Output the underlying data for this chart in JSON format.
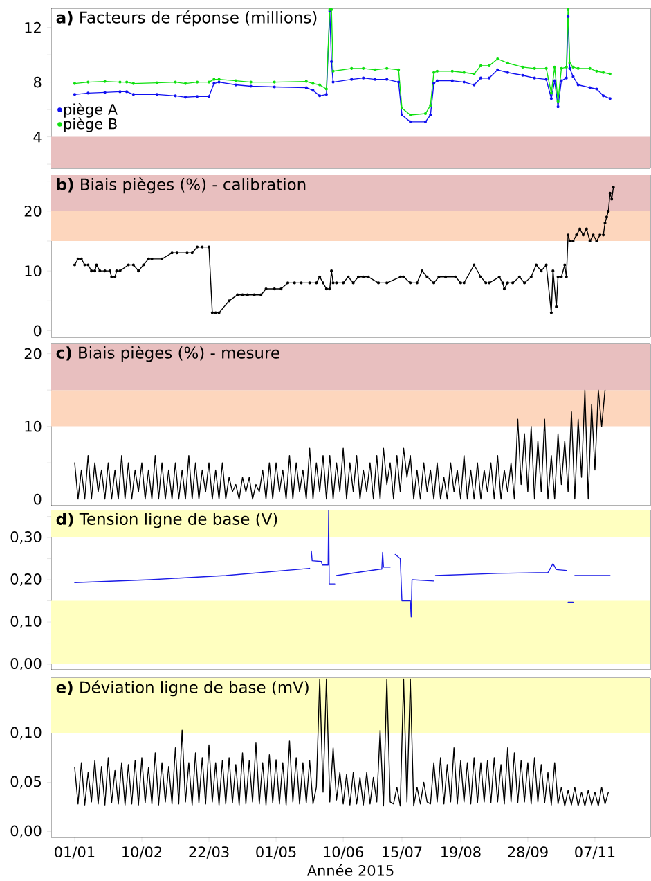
{
  "chart_data": [
    {
      "type": "line",
      "title": "**a)** Facteurs de réponse (millions)",
      "marker": "circle",
      "line_style": "solid",
      "legend": "left",
      "tick_labels": "y",
      "xlim": [
        "2014-12-18",
        "2015-12-10"
      ],
      "ylim": [
        1.7,
        13.4
      ],
      "yticks": [
        {
          "value": 2,
          "label": null
        },
        4,
        {
          "value": 6,
          "label": null
        },
        8,
        {
          "value": 10,
          "label": null
        },
        12
      ],
      "bands": [
        {
          "axis": "y",
          "from": 1.7,
          "to": 4,
          "color": "#e8bfbf"
        }
      ],
      "x": [
        "2015-01-01",
        "2015-01-09",
        "2015-01-19",
        "2015-01-28",
        "2015-02-01",
        "2015-02-05",
        "2015-02-19",
        "2015-03-02",
        "2015-03-08",
        "2015-03-15",
        "2015-03-22",
        "2015-03-25",
        "2015-03-28",
        "2015-04-07",
        "2015-04-16",
        "2015-04-30",
        "2015-05-19",
        "2015-05-23",
        "2015-05-27",
        "2015-05-31",
        "2015-06-02",
        "2015-06-03",
        "2015-06-04",
        "2015-06-15",
        "2015-06-22",
        "2015-06-29",
        "2015-07-06",
        "2015-07-13",
        "2015-07-15",
        "2015-07-20",
        "2015-07-29",
        "2015-08-01",
        "2015-08-03",
        "2015-08-05",
        "2015-08-14",
        "2015-08-21",
        "2015-08-27",
        "2015-08-31",
        "2015-09-05",
        "2015-09-10",
        "2015-09-16",
        "2015-09-25",
        "2015-10-02",
        "2015-10-09",
        "2015-10-12",
        "2015-10-14",
        "2015-10-16",
        "2015-10-18",
        "2015-10-21",
        "2015-10-22",
        "2015-10-23",
        "2015-10-25",
        "2015-10-28",
        "2015-11-04",
        "2015-11-08",
        "2015-11-12",
        "2015-11-16"
      ],
      "series": [
        {
          "name": "piège A",
          "color": "#1010f0",
          "values": [
            7.1,
            7.2,
            7.25,
            7.3,
            7.3,
            7.1,
            7.1,
            7.0,
            6.9,
            6.95,
            6.95,
            7.9,
            8.0,
            7.8,
            7.7,
            7.65,
            7.6,
            7.4,
            7.0,
            7.1,
            13.2,
            9.5,
            8.0,
            8.2,
            8.3,
            8.2,
            8.2,
            8.0,
            5.6,
            5.1,
            5.1,
            5.6,
            7.9,
            8.1,
            8.1,
            8.0,
            7.8,
            8.3,
            8.3,
            8.9,
            8.7,
            8.5,
            8.3,
            8.2,
            6.8,
            8.1,
            6.2,
            8.1,
            8.3,
            12.8,
            9.0,
            8.4,
            7.8,
            7.6,
            7.5,
            7.0,
            6.8
          ]
        },
        {
          "name": "piège B",
          "color": "#10e010",
          "values": [
            7.9,
            8.0,
            8.05,
            8.0,
            8.0,
            7.9,
            7.95,
            8.0,
            7.9,
            8.0,
            8.0,
            8.2,
            8.2,
            8.1,
            8.0,
            8.0,
            8.05,
            7.9,
            7.8,
            7.5,
            13.3,
            13.3,
            8.8,
            9.0,
            9.0,
            8.9,
            9.0,
            8.9,
            6.1,
            5.6,
            5.7,
            6.3,
            8.7,
            8.8,
            8.8,
            8.7,
            8.6,
            9.2,
            9.2,
            9.7,
            9.4,
            9.1,
            9.0,
            9.0,
            7.2,
            9.1,
            6.6,
            9.0,
            9.1,
            13.3,
            9.4,
            9.1,
            9.0,
            9.0,
            8.8,
            8.7,
            8.6
          ]
        }
      ]
    },
    {
      "type": "line",
      "title": "**b)** Biais pièges (%) - calibration",
      "marker": "circle",
      "line_style": "solid",
      "tick_labels": "y",
      "xlim": [
        "2014-12-18",
        "2015-12-10"
      ],
      "ylim": [
        -1.1,
        26
      ],
      "yticks": [
        0,
        {
          "value": 5,
          "label": null
        },
        10,
        {
          "value": 15,
          "label": null
        },
        20,
        {
          "value": 25,
          "label": null
        }
      ],
      "bands": [
        {
          "axis": "y",
          "from": 15,
          "to": 20,
          "color": "#fdd6bd"
        },
        {
          "axis": "y",
          "from": 20,
          "to": 26,
          "color": "#e8bfbf"
        }
      ],
      "x": [
        "2015-01-01",
        "2015-01-03",
        "2015-01-05",
        "2015-01-07",
        "2015-01-09",
        "2015-01-11",
        "2015-01-13",
        "2015-01-14",
        "2015-01-16",
        "2015-01-19",
        "2015-01-22",
        "2015-01-23",
        "2015-01-25",
        "2015-01-26",
        "2015-01-28",
        "2015-02-02",
        "2015-02-05",
        "2015-02-08",
        "2015-02-11",
        "2015-02-14",
        "2015-02-16",
        "2015-02-22",
        "2015-02-28",
        "2015-03-03",
        "2015-03-09",
        "2015-03-12",
        "2015-03-15",
        "2015-03-18",
        "2015-03-22",
        "2015-03-24",
        "2015-03-26",
        "2015-03-28",
        "2015-04-03",
        "2015-04-08",
        "2015-04-11",
        "2015-04-14",
        "2015-04-18",
        "2015-04-22",
        "2015-04-25",
        "2015-04-30",
        "2015-05-04",
        "2015-05-08",
        "2015-05-12",
        "2015-05-16",
        "2015-05-21",
        "2015-05-25",
        "2015-05-27",
        "2015-05-29",
        "2015-05-31",
        "2015-06-02",
        "2015-06-03",
        "2015-06-04",
        "2015-06-06",
        "2015-06-10",
        "2015-06-13",
        "2015-06-16",
        "2015-06-19",
        "2015-06-22",
        "2015-06-25",
        "2015-07-01",
        "2015-07-06",
        "2015-07-14",
        "2015-07-16",
        "2015-07-20",
        "2015-07-24",
        "2015-07-27",
        "2015-07-30",
        "2015-08-03",
        "2015-08-06",
        "2015-08-10",
        "2015-08-16",
        "2015-08-19",
        "2015-08-21",
        "2015-08-27",
        "2015-08-31",
        "2015-09-03",
        "2015-09-05",
        "2015-09-11",
        "2015-09-13",
        "2015-09-14",
        "2015-09-16",
        "2015-09-19",
        "2015-09-23",
        "2015-09-26",
        "2015-09-30",
        "2015-10-03",
        "2015-10-06",
        "2015-10-09",
        "2015-10-12",
        "2015-10-13",
        "2015-10-15",
        "2015-10-16",
        "2015-10-18",
        "2015-10-20",
        "2015-10-21",
        "2015-10-22",
        "2015-10-23",
        "2015-10-25",
        "2015-10-27",
        "2015-10-29",
        "2015-10-31",
        "2015-11-02",
        "2015-11-04",
        "2015-11-06",
        "2015-11-08",
        "2015-11-10",
        "2015-11-12",
        "2015-11-13",
        "2015-11-14",
        "2015-11-15",
        "2015-11-16",
        "2015-11-17",
        "2015-11-18"
      ],
      "series": [
        {
          "color": "#000000",
          "values": [
            11,
            12,
            12,
            11,
            11,
            10,
            10,
            11,
            10,
            10,
            10,
            9,
            9,
            10,
            10,
            11,
            11,
            10,
            11,
            12,
            12,
            12,
            13,
            13,
            13,
            13,
            14,
            14,
            14,
            3,
            3,
            3,
            5,
            6,
            6,
            6,
            6,
            6,
            7,
            7,
            7,
            8,
            8,
            8,
            8,
            8,
            9,
            8,
            7,
            7,
            10,
            8,
            8,
            8,
            9,
            8,
            9,
            9,
            9,
            8,
            8,
            9,
            9,
            8,
            8,
            10,
            9,
            8,
            9,
            9,
            9,
            8,
            8,
            11,
            9,
            8,
            8,
            9,
            8,
            7,
            8,
            8,
            9,
            8,
            9,
            11,
            10,
            11,
            3,
            10,
            4,
            9,
            9,
            11,
            9,
            16,
            15,
            15,
            16,
            17,
            16,
            17,
            15,
            16,
            15,
            16,
            16,
            18,
            19,
            20,
            23,
            22,
            24
          ]
        }
      ]
    },
    {
      "type": "line",
      "title": "**c)** Biais pièges (%) - mesure",
      "line_style": "solid",
      "tick_labels": "y",
      "xlim": [
        "2014-12-18",
        "2015-12-10"
      ],
      "ylim": [
        -0.9,
        21.4
      ],
      "yticks": [
        0,
        {
          "value": 5,
          "label": null
        },
        10,
        {
          "value": 15,
          "label": null
        },
        20
      ],
      "bands": [
        {
          "axis": "y",
          "from": 10,
          "to": 15,
          "color": "#fdd6bd"
        },
        {
          "axis": "y",
          "from": 15,
          "to": 21.4,
          "color": "#e8bfbf"
        }
      ],
      "x": [
        "2015-01-01",
        "2015-01-03",
        "2015-01-05",
        "2015-01-07",
        "2015-01-09",
        "2015-01-11",
        "2015-01-13",
        "2015-01-15",
        "2015-01-17",
        "2015-01-19",
        "2015-01-21",
        "2015-01-23",
        "2015-01-25",
        "2015-01-27",
        "2015-01-29",
        "2015-01-31",
        "2015-02-02",
        "2015-02-04",
        "2015-02-06",
        "2015-02-08",
        "2015-02-10",
        "2015-02-12",
        "2015-02-14",
        "2015-02-16",
        "2015-02-18",
        "2015-02-20",
        "2015-02-22",
        "2015-02-24",
        "2015-02-26",
        "2015-02-28",
        "2015-03-02",
        "2015-03-04",
        "2015-03-06",
        "2015-03-08",
        "2015-03-10",
        "2015-03-12",
        "2015-03-14",
        "2015-03-16",
        "2015-03-18",
        "2015-03-20",
        "2015-03-22",
        "2015-03-24",
        "2015-03-26",
        "2015-03-28",
        "2015-03-30",
        "2015-04-01",
        "2015-04-03",
        "2015-04-05",
        "2015-04-07",
        "2015-04-09",
        "2015-04-11",
        "2015-04-13",
        "2015-04-15",
        "2015-04-17",
        "2015-04-19",
        "2015-04-21",
        "2015-04-23",
        "2015-04-25",
        "2015-04-27",
        "2015-04-29",
        "2015-05-01",
        "2015-05-03",
        "2015-05-05",
        "2015-05-07",
        "2015-05-09",
        "2015-05-11",
        "2015-05-13",
        "2015-05-15",
        "2015-05-17",
        "2015-05-19",
        "2015-05-21",
        "2015-05-23",
        "2015-05-25",
        "2015-05-27",
        "2015-05-29",
        "2015-05-31",
        "2015-06-02",
        "2015-06-04",
        "2015-06-06",
        "2015-06-08",
        "2015-06-10",
        "2015-06-12",
        "2015-06-14",
        "2015-06-16",
        "2015-06-18",
        "2015-06-20",
        "2015-06-22",
        "2015-06-24",
        "2015-06-26",
        "2015-06-28",
        "2015-06-30",
        "2015-07-02",
        "2015-07-04",
        "2015-07-06",
        "2015-07-08",
        "2015-07-10",
        "2015-07-12",
        "2015-07-14",
        "2015-07-16",
        "2015-07-18",
        "2015-07-20",
        "2015-07-22",
        "2015-07-24",
        "2015-07-26",
        "2015-07-28",
        "2015-07-30",
        "2015-08-01",
        "2015-08-03",
        "2015-08-05",
        "2015-08-07",
        "2015-08-09",
        "2015-08-11",
        "2015-08-13",
        "2015-08-15",
        "2015-08-17",
        "2015-08-19",
        "2015-08-21",
        "2015-08-23",
        "2015-08-25",
        "2015-08-27",
        "2015-08-29",
        "2015-08-31",
        "2015-09-02",
        "2015-09-04",
        "2015-09-06",
        "2015-09-08",
        "2015-09-10",
        "2015-09-12",
        "2015-09-14",
        "2015-09-16",
        "2015-09-18",
        "2015-09-20",
        "2015-09-22",
        "2015-09-24",
        "2015-09-26",
        "2015-09-28",
        "2015-09-30",
        "2015-10-02",
        "2015-10-04",
        "2015-10-06",
        "2015-10-08",
        "2015-10-10",
        "2015-10-12",
        "2015-10-14",
        "2015-10-16",
        "2015-10-18",
        "2015-10-20",
        "2015-10-22",
        "2015-10-24",
        "2015-10-26",
        "2015-10-28",
        "2015-10-30",
        "2015-11-01",
        "2015-11-03",
        "2015-11-05",
        "2015-11-07",
        "2015-11-09",
        "2015-11-11",
        "2015-11-13"
      ],
      "series": [
        {
          "color": "#000000",
          "values": [
            5,
            0,
            4,
            0,
            6,
            0,
            5,
            1,
            4,
            0,
            5,
            0,
            4,
            0,
            6,
            0,
            5,
            0,
            4,
            1,
            5,
            0,
            4,
            0,
            6,
            0,
            5,
            0,
            4,
            0,
            5,
            0,
            4,
            0,
            6,
            0,
            5,
            0,
            4,
            1,
            5,
            0,
            4,
            0,
            5,
            0,
            3,
            1,
            2,
            0,
            3,
            1,
            3,
            0,
            2,
            1,
            4,
            0,
            5,
            0,
            5,
            1,
            4,
            0,
            6,
            0,
            5,
            1,
            4,
            0,
            7,
            0,
            5,
            1,
            6,
            0,
            6,
            0,
            5,
            1,
            7,
            0,
            5,
            1,
            6,
            0,
            4,
            1,
            5,
            0,
            6,
            0,
            7,
            2,
            5,
            0,
            6,
            1,
            7,
            3,
            6,
            0,
            4,
            0,
            5,
            1,
            4,
            0,
            5,
            0,
            3,
            0,
            5,
            1,
            4,
            0,
            6,
            0,
            4,
            0,
            5,
            0,
            4,
            1,
            5,
            0,
            6,
            0,
            4,
            1,
            5,
            0,
            11,
            2,
            9,
            1,
            10,
            0,
            8,
            1,
            11,
            0,
            6,
            0,
            9,
            2,
            8,
            1,
            12,
            0,
            11,
            3,
            15,
            0,
            13,
            4,
            15,
            10,
            15
          ]
        }
      ]
    },
    {
      "type": "line",
      "title": "**d)** Tension ligne de base (V)",
      "line_style": "solid",
      "tick_labels": "y",
      "xlim": [
        "2014-12-18",
        "2015-12-10"
      ],
      "ylim": [
        -0.013,
        0.364
      ],
      "yticks": [
        {
          "value": 0,
          "label": "0,00"
        },
        {
          "value": 0.05,
          "label": null
        },
        {
          "value": 0.1,
          "label": "0,10"
        },
        {
          "value": 0.15,
          "label": null
        },
        {
          "value": 0.2,
          "label": "0,20"
        },
        {
          "value": 0.25,
          "label": null
        },
        {
          "value": 0.3,
          "label": "0,30"
        },
        {
          "value": 0.35,
          "label": null
        }
      ],
      "bands": [
        {
          "axis": "y",
          "from": 0.3,
          "to": 0.364,
          "color": "#ffffc0"
        },
        {
          "axis": "y",
          "from": 0,
          "to": 0.15,
          "color": "#ffffc0"
        }
      ],
      "x": [
        "2015-01-01",
        "2015-02-15",
        "2015-04-01",
        "2015-05-21",
        "2015-05-21T12:00",
        "2015-05-22",
        "2015-05-22T12:00",
        "2015-05-28",
        "2015-05-28T12:00",
        "2015-06-01",
        "2015-06-01T08:00",
        "2015-06-01T16:00",
        "2015-06-05",
        "2015-06-05T12:00",
        "2015-06-06",
        "2015-07-02",
        "2015-07-03",
        "2015-07-03T12:00",
        "2015-07-04",
        "2015-07-08",
        "2015-07-09",
        "2015-07-11",
        "2015-07-14",
        "2015-07-15",
        "2015-07-20",
        "2015-07-20T12:00",
        "2015-07-21",
        "2015-08-03",
        "2015-08-03T12:00",
        "2015-08-04",
        "2015-09-10",
        "2015-10-10",
        "2015-10-13",
        "2015-10-15",
        "2015-10-21",
        "2015-10-21T12:00",
        "2015-10-22",
        "2015-10-25",
        "2015-10-25T12:00",
        "2015-10-26",
        "2015-11-16"
      ],
      "series": [
        {
          "color": "#1a1ae6",
          "values": [
            0.193,
            0.2,
            0.21,
            0.227,
            null,
            0.268,
            0.245,
            0.243,
            0.235,
            0.235,
            0.364,
            0.19,
            0.19,
            null,
            0.21,
            0.225,
            0.225,
            0.265,
            0.23,
            0.23,
            null,
            0.26,
            0.25,
            0.15,
            0.15,
            0.112,
            0.2,
            0.197,
            null,
            0.21,
            0.215,
            0.217,
            0.238,
            0.224,
            0.222,
            null,
            0.147,
            0.147,
            null,
            0.21,
            0.21
          ]
        }
      ]
    },
    {
      "type": "line",
      "title": "**e)** Déviation ligne de base (mV)",
      "xlabel": "Année 2015",
      "line_style": "solid",
      "xlim": [
        "2014-12-18",
        "2015-12-10"
      ],
      "ylim": [
        -0.006,
        0.156
      ],
      "xticks": [
        {
          "value": "2015-01-01",
          "label": "01/01"
        },
        {
          "value": "2015-02-10",
          "label": "10/02"
        },
        {
          "value": "2015-03-22",
          "label": "22/03"
        },
        {
          "value": "2015-05-01",
          "label": "01/05"
        },
        {
          "value": "2015-06-10",
          "label": "10/06"
        },
        {
          "value": "2015-07-15",
          "label": "15/07"
        },
        {
          "value": "2015-08-19",
          "label": "19/08"
        },
        {
          "value": "2015-09-28",
          "label": "28/09"
        },
        {
          "value": "2015-11-07",
          "label": "07/11"
        }
      ],
      "yticks": [
        {
          "value": 0,
          "label": "0,00"
        },
        {
          "value": 0.05,
          "label": "0,05"
        },
        {
          "value": 0.1,
          "label": "0,10"
        },
        {
          "value": 0.15,
          "label": null
        }
      ],
      "bands": [
        {
          "axis": "y",
          "from": 0.1,
          "to": 0.156,
          "color": "#ffffc0"
        }
      ],
      "x": [
        "2015-01-01",
        "2015-01-03",
        "2015-01-05",
        "2015-01-07",
        "2015-01-09",
        "2015-01-11",
        "2015-01-13",
        "2015-01-15",
        "2015-01-17",
        "2015-01-19",
        "2015-01-21",
        "2015-01-23",
        "2015-01-25",
        "2015-01-27",
        "2015-01-29",
        "2015-01-31",
        "2015-02-02",
        "2015-02-04",
        "2015-02-06",
        "2015-02-08",
        "2015-02-10",
        "2015-02-12",
        "2015-02-14",
        "2015-02-16",
        "2015-02-18",
        "2015-02-20",
        "2015-02-22",
        "2015-02-24",
        "2015-02-26",
        "2015-02-28",
        "2015-03-02",
        "2015-03-04",
        "2015-03-06",
        "2015-03-08",
        "2015-03-10",
        "2015-03-12",
        "2015-03-14",
        "2015-03-16",
        "2015-03-18",
        "2015-03-20",
        "2015-03-22",
        "2015-03-24",
        "2015-03-26",
        "2015-03-28",
        "2015-03-30",
        "2015-04-01",
        "2015-04-03",
        "2015-04-05",
        "2015-04-07",
        "2015-04-09",
        "2015-04-11",
        "2015-04-13",
        "2015-04-15",
        "2015-04-17",
        "2015-04-19",
        "2015-04-21",
        "2015-04-23",
        "2015-04-25",
        "2015-04-27",
        "2015-04-29",
        "2015-05-01",
        "2015-05-03",
        "2015-05-05",
        "2015-05-07",
        "2015-05-09",
        "2015-05-11",
        "2015-05-13",
        "2015-05-15",
        "2015-05-17",
        "2015-05-19",
        "2015-05-21",
        "2015-05-23",
        "2015-05-25",
        "2015-05-27",
        "2015-05-29",
        "2015-05-31",
        "2015-06-02",
        "2015-06-04",
        "2015-06-06",
        "2015-06-08",
        "2015-06-10",
        "2015-06-12",
        "2015-06-14",
        "2015-06-16",
        "2015-06-18",
        "2015-06-20",
        "2015-06-22",
        "2015-06-24",
        "2015-06-26",
        "2015-06-28",
        "2015-06-30",
        "2015-07-02",
        "2015-07-04",
        "2015-07-06",
        "2015-07-08",
        "2015-07-10",
        "2015-07-12",
        "2015-07-14",
        "2015-07-16",
        "2015-07-18",
        "2015-07-20",
        "2015-07-22",
        "2015-07-24",
        "2015-07-26",
        "2015-07-28",
        "2015-07-30",
        "2015-08-01",
        "2015-08-03",
        "2015-08-05",
        "2015-08-07",
        "2015-08-09",
        "2015-08-11",
        "2015-08-13",
        "2015-08-15",
        "2015-08-17",
        "2015-08-19",
        "2015-08-21",
        "2015-08-23",
        "2015-08-25",
        "2015-08-27",
        "2015-08-29",
        "2015-08-31",
        "2015-09-02",
        "2015-09-04",
        "2015-09-06",
        "2015-09-08",
        "2015-09-10",
        "2015-09-12",
        "2015-09-14",
        "2015-09-16",
        "2015-09-18",
        "2015-09-20",
        "2015-09-22",
        "2015-09-24",
        "2015-09-26",
        "2015-09-28",
        "2015-09-30",
        "2015-10-02",
        "2015-10-04",
        "2015-10-06",
        "2015-10-08",
        "2015-10-10",
        "2015-10-12",
        "2015-10-14",
        "2015-10-16",
        "2015-10-18",
        "2015-10-20",
        "2015-10-22",
        "2015-10-24",
        "2015-10-26",
        "2015-10-28",
        "2015-10-30",
        "2015-11-01",
        "2015-11-03",
        "2015-11-05",
        "2015-11-07",
        "2015-11-09",
        "2015-11-11",
        "2015-11-13",
        "2015-11-15"
      ],
      "series": [
        {
          "color": "#000000",
          "values": [
            0.065,
            0.028,
            0.07,
            0.027,
            0.06,
            0.03,
            0.072,
            0.028,
            0.066,
            0.027,
            0.075,
            0.029,
            0.062,
            0.028,
            0.07,
            0.027,
            0.068,
            0.028,
            0.072,
            0.027,
            0.075,
            0.029,
            0.065,
            0.028,
            0.08,
            0.027,
            0.07,
            0.03,
            0.066,
            0.028,
            0.085,
            0.028,
            0.103,
            0.03,
            0.07,
            0.027,
            0.08,
            0.029,
            0.075,
            0.028,
            0.088,
            0.03,
            0.07,
            0.027,
            0.072,
            0.028,
            0.075,
            0.029,
            0.068,
            0.027,
            0.08,
            0.028,
            0.072,
            0.03,
            0.09,
            0.028,
            0.07,
            0.027,
            0.078,
            0.029,
            0.073,
            0.028,
            0.07,
            0.027,
            0.092,
            0.03,
            0.075,
            0.028,
            0.07,
            0.029,
            0.072,
            0.028,
            0.045,
            0.155,
            0.04,
            0.155,
            0.03,
            0.085,
            0.032,
            0.06,
            0.028,
            0.058,
            0.027,
            0.06,
            0.028,
            0.055,
            0.027,
            0.06,
            0.028,
            0.055,
            0.03,
            0.103,
            0.026,
            0.155,
            0.03,
            0.028,
            0.045,
            0.026,
            0.155,
            0.03,
            0.155,
            0.026,
            0.045,
            0.028,
            0.05,
            0.03,
            0.028,
            0.07,
            0.03,
            0.075,
            0.028,
            0.068,
            0.03,
            0.085,
            0.028,
            0.072,
            0.03,
            0.07,
            0.028,
            0.075,
            0.029,
            0.07,
            0.03,
            0.072,
            0.029,
            0.075,
            0.03,
            0.068,
            0.028,
            0.085,
            0.03,
            0.08,
            0.029,
            0.072,
            0.03,
            0.07,
            0.028,
            0.075,
            0.03,
            0.068,
            0.029,
            0.06,
            0.027,
            0.07,
            0.028,
            0.045,
            0.026,
            0.042,
            0.027,
            0.045,
            0.026,
            0.04,
            0.026,
            0.042,
            0.027,
            0.04,
            0.026,
            0.045,
            0.028,
            0.04
          ]
        }
      ]
    }
  ]
}
